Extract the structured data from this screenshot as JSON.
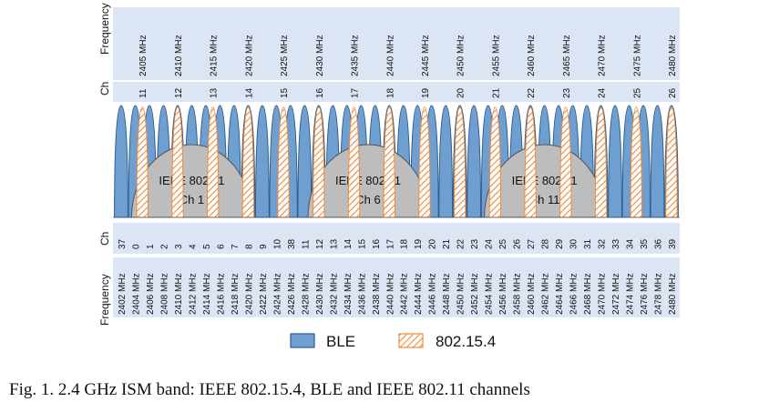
{
  "top_axis": {
    "ch_label": "Ch",
    "freq_label": "Frequency"
  },
  "bottom_axis": {
    "ch_label": "Ch",
    "freq_label": "Frequency"
  },
  "zigbee_channels": [
    {
      "ch": "11",
      "freq": "2405 MHz"
    },
    {
      "ch": "12",
      "freq": "2410 MHz"
    },
    {
      "ch": "13",
      "freq": "2415 MHz"
    },
    {
      "ch": "14",
      "freq": "2420 MHz"
    },
    {
      "ch": "15",
      "freq": "2425 MHz"
    },
    {
      "ch": "16",
      "freq": "2430 MHz"
    },
    {
      "ch": "17",
      "freq": "2435 MHz"
    },
    {
      "ch": "18",
      "freq": "2440 MHz"
    },
    {
      "ch": "19",
      "freq": "2445 MHz"
    },
    {
      "ch": "20",
      "freq": "2450 MHz"
    },
    {
      "ch": "21",
      "freq": "2455 MHz"
    },
    {
      "ch": "22",
      "freq": "2460 MHz"
    },
    {
      "ch": "23",
      "freq": "2465 MHz"
    },
    {
      "ch": "24",
      "freq": "2470 MHz"
    },
    {
      "ch": "25",
      "freq": "2475 MHz"
    },
    {
      "ch": "26",
      "freq": "2480 MHz"
    }
  ],
  "ble_channels": [
    {
      "ch": "37",
      "freq": "2402 MHz"
    },
    {
      "ch": "0",
      "freq": "2404 MHz"
    },
    {
      "ch": "1",
      "freq": "2406 MHz"
    },
    {
      "ch": "2",
      "freq": "2408 MHz"
    },
    {
      "ch": "3",
      "freq": "2410 MHz"
    },
    {
      "ch": "4",
      "freq": "2412 MHz"
    },
    {
      "ch": "5",
      "freq": "2414 MHz"
    },
    {
      "ch": "6",
      "freq": "2416 MHz"
    },
    {
      "ch": "7",
      "freq": "2418 MHz"
    },
    {
      "ch": "8",
      "freq": "2420 MHz"
    },
    {
      "ch": "9",
      "freq": "2422 MHz"
    },
    {
      "ch": "10",
      "freq": "2424 MHz"
    },
    {
      "ch": "38",
      "freq": "2426 MHz"
    },
    {
      "ch": "11",
      "freq": "2428 MHz"
    },
    {
      "ch": "12",
      "freq": "2430 MHz"
    },
    {
      "ch": "13",
      "freq": "2432 MHz"
    },
    {
      "ch": "14",
      "freq": "2434 MHz"
    },
    {
      "ch": "15",
      "freq": "2436 MHz"
    },
    {
      "ch": "16",
      "freq": "2438 MHz"
    },
    {
      "ch": "17",
      "freq": "2440 MHz"
    },
    {
      "ch": "18",
      "freq": "2442 MHz"
    },
    {
      "ch": "19",
      "freq": "2444 MHz"
    },
    {
      "ch": "20",
      "freq": "2446 MHz"
    },
    {
      "ch": "21",
      "freq": "2448 MHz"
    },
    {
      "ch": "22",
      "freq": "2450 MHz"
    },
    {
      "ch": "23",
      "freq": "2452 MHz"
    },
    {
      "ch": "24",
      "freq": "2454 MHz"
    },
    {
      "ch": "25",
      "freq": "2456 MHz"
    },
    {
      "ch": "26",
      "freq": "2458 MHz"
    },
    {
      "ch": "27",
      "freq": "2460 MHz"
    },
    {
      "ch": "28",
      "freq": "2462 MHz"
    },
    {
      "ch": "29",
      "freq": "2464 MHz"
    },
    {
      "ch": "30",
      "freq": "2466 MHz"
    },
    {
      "ch": "31",
      "freq": "2468 MHz"
    },
    {
      "ch": "32",
      "freq": "2470 MHz"
    },
    {
      "ch": "33",
      "freq": "2472 MHz"
    },
    {
      "ch": "34",
      "freq": "2474 MHz"
    },
    {
      "ch": "35",
      "freq": "2476 MHz"
    },
    {
      "ch": "36",
      "freq": "2478 MHz"
    },
    {
      "ch": "39",
      "freq": "2480 MHz"
    }
  ],
  "wifi_channels": [
    {
      "name": "IEEE 802.11",
      "ch": "Ch 1",
      "center_mhz": 2412
    },
    {
      "name": "IEEE 802.11",
      "ch": "Ch 6",
      "center_mhz": 2437
    },
    {
      "name": "IEEE 802.11",
      "ch": "Ch 11",
      "center_mhz": 2462
    }
  ],
  "legend": {
    "ble": "BLE",
    "zigbee": "802.15.4"
  },
  "caption": "Fig. 1.  2.4 GHz ISM band: IEEE 802.15.4, BLE and IEEE 802.11 channels",
  "colors": {
    "ble_fill": "#6f9fd0",
    "ble_stroke": "#2e5e8e",
    "zigbee_stroke": "#ee8a3c",
    "wifi_fill": "#bdbdbd",
    "label_band": "#dbe5f3"
  }
}
